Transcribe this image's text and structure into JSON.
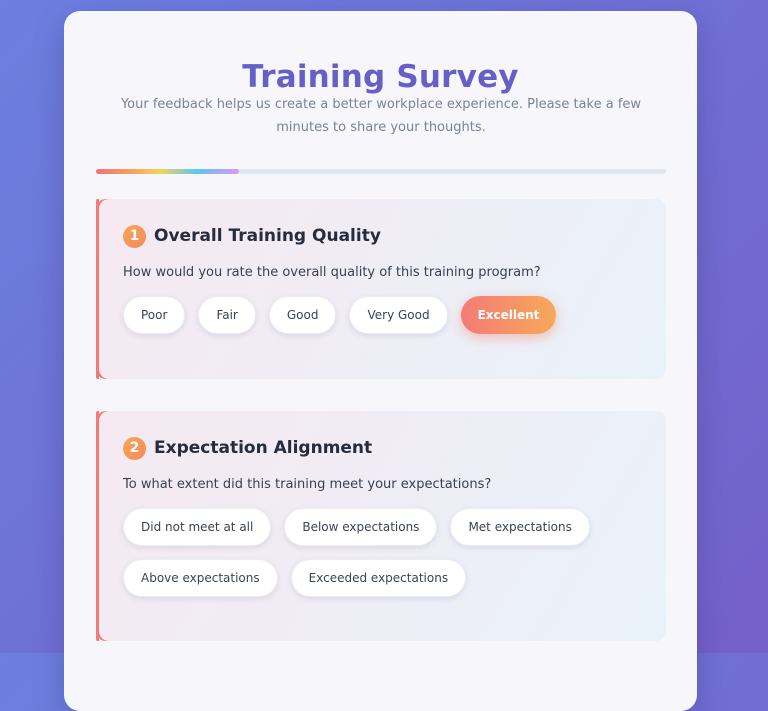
{
  "survey": {
    "title": "Training Survey",
    "subtitle": "Your feedback helps us create a better workplace experience. Please take a few minutes to share your thoughts.",
    "progress_percent": 25
  },
  "colors": {
    "background_start": "#6b7fe0",
    "background_end": "#7460c9",
    "title": "#6660c6",
    "accent_border": "#ef7b7b",
    "selected_start": "#f47b76",
    "selected_end": "#f6a95a"
  },
  "questions": [
    {
      "number": "1",
      "title": "Overall Training Quality",
      "text": "How would you rate the overall quality of this training program?",
      "options": [
        "Poor",
        "Fair",
        "Good",
        "Very Good",
        "Excellent"
      ],
      "selected": "Excellent"
    },
    {
      "number": "2",
      "title": "Expectation Alignment",
      "text": "To what extent did this training meet your expectations?",
      "options": [
        "Did not meet at all",
        "Below expectations",
        "Met expectations",
        "Above expectations",
        "Exceeded expectations"
      ],
      "selected": null
    }
  ]
}
